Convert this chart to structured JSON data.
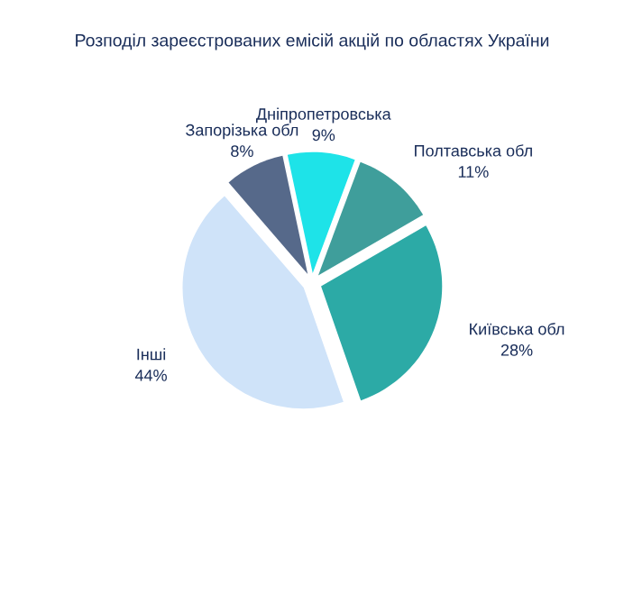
{
  "chart_data": {
    "type": "pie",
    "title": "Розподіл зареєстрованих емісій акцій по областях України",
    "categories": [
      "Дніпропетровська",
      "Полтавська обл",
      "Київська обл",
      "Інші",
      "Запорізька обл"
    ],
    "values": [
      9,
      11,
      28,
      44,
      8
    ],
    "colors": [
      "#1ee3e8",
      "#3f9e9b",
      "#2caaa6",
      "#cfe3f9",
      "#56698a"
    ],
    "value_labels": [
      "9%",
      "11%",
      "28%",
      "44%",
      "8%"
    ]
  }
}
